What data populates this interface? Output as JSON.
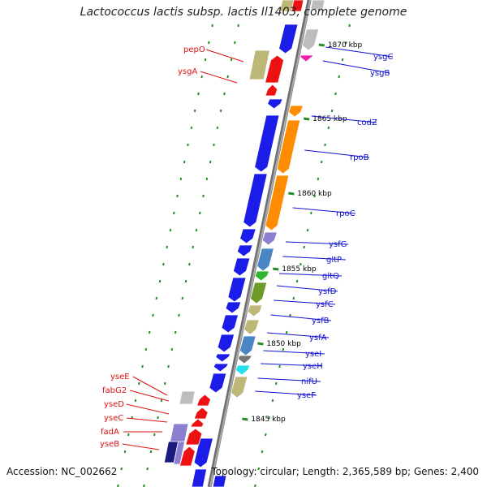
{
  "title": "Lactococcus lactis subsp. lactis Il1403, complete genome",
  "accession_text": "Accession: NC_002662",
  "summary_text": "Topology: circular; Length: 2,365,589 bp; Genes: 2,400",
  "colors": {
    "forward_label": "#1010d0",
    "reverse_label": "#dd1111",
    "backbone": "#8a8a8a",
    "tick": "#2a8a2a"
  },
  "genome_positions": [
    {
      "label": "1870 kbp"
    },
    {
      "label": "1865 kbp"
    },
    {
      "label": "1860 kbp"
    },
    {
      "label": "1855 kbp"
    },
    {
      "label": "1850 kbp"
    },
    {
      "label": "1845 kbp"
    }
  ],
  "forward_genes": [
    {
      "name": "ysgC",
      "color": "#bdbdbd"
    },
    {
      "name": "ysgB",
      "color": "#ee22aa"
    },
    {
      "name": "codZ",
      "color": "#ff8c00"
    },
    {
      "name": "rpoB",
      "color": "#ff8c00"
    },
    {
      "name": "rpoC",
      "color": "#ff8c00"
    },
    {
      "name": "ysfG",
      "color": "#8c7fd0"
    },
    {
      "name": "gltP",
      "color": "#4a86c4"
    },
    {
      "name": "gltQ",
      "color": "#2fb52f"
    },
    {
      "name": "ysfD",
      "color": "#6e9a2a"
    },
    {
      "name": "ysfC",
      "color": "#bdb778"
    },
    {
      "name": "ysfB",
      "color": "#bdb778"
    },
    {
      "name": "ysfA",
      "color": "#4a86c4"
    },
    {
      "name": "yseI",
      "color": "#757575"
    },
    {
      "name": "yseH",
      "color": "#22e0ee"
    },
    {
      "name": "nifU",
      "color": "#bdb778"
    },
    {
      "name": "yseF",
      "color": "#bdb778"
    }
  ],
  "reverse_genes": [
    {
      "name": "pepO",
      "color": "#bdb778"
    },
    {
      "name": "ysgA",
      "color": "#ee1111"
    },
    {
      "name": "yseE",
      "color": "#bdbdbd"
    },
    {
      "name": "fabG2",
      "color": "#ee1111"
    },
    {
      "name": "yseD",
      "color": "#ee1111"
    },
    {
      "name": "yseC",
      "color": "#ee1111"
    },
    {
      "name": "fadA",
      "color": "#8c7fd0"
    },
    {
      "name": "yseB",
      "color": "#1a1a80"
    }
  ]
}
